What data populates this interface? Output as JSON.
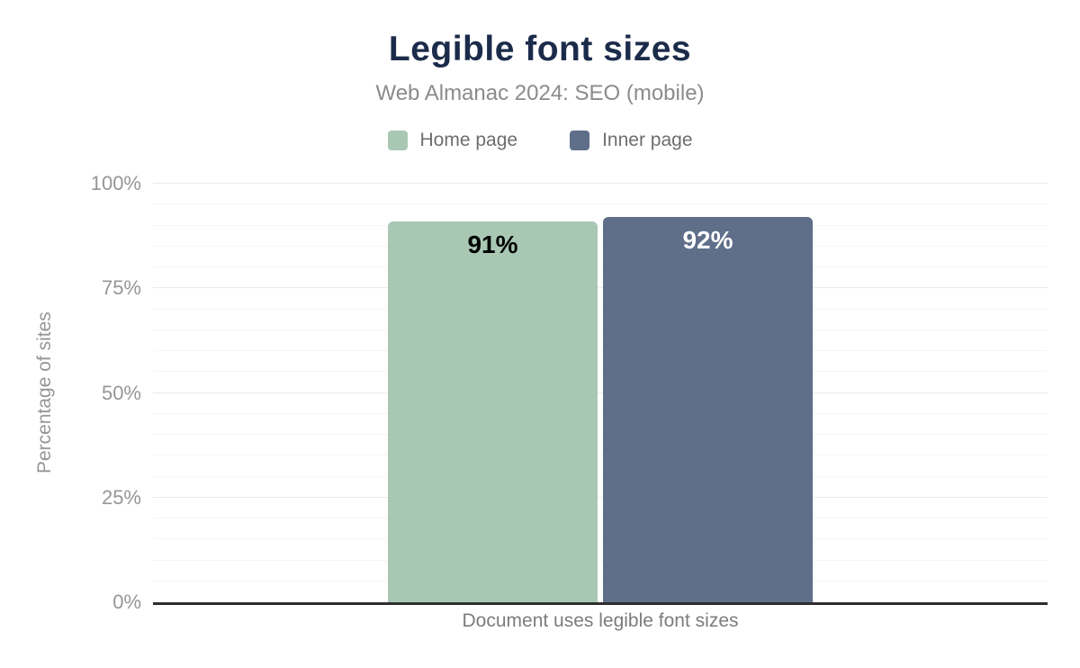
{
  "chart_data": {
    "type": "bar",
    "title": "Legible font sizes",
    "subtitle": "Web Almanac 2024: SEO (mobile)",
    "categories": [
      "Document uses legible font sizes"
    ],
    "series": [
      {
        "name": "Home page",
        "values": [
          91
        ],
        "color": "#a8c8b4",
        "label_color": "#000000"
      },
      {
        "name": "Inner page",
        "values": [
          92
        ],
        "color": "#5f6e89",
        "label_color": "#ffffff"
      }
    ],
    "value_suffix": "%",
    "ylabel": "Percentage of sites",
    "xlabel": "Document uses legible font sizes",
    "ylim": [
      0,
      100
    ],
    "yticks": [
      "0%",
      "25%",
      "50%",
      "75%",
      "100%"
    ],
    "ytick_values": [
      0,
      25,
      50,
      75,
      100
    ],
    "minor_grid_step": 5,
    "grid": true,
    "legend_position": "top"
  },
  "colors": {
    "title": "#1b2b4a",
    "subtitle": "#8b8b8b",
    "axis_text": "#969696",
    "legend_text": "#6e6e6e",
    "category_text": "#7c7c7c",
    "axis_line": "#2e2e2e",
    "grid_minor": "#f6f6f6",
    "grid_major": "#ebebeb",
    "background": "#ffffff"
  }
}
